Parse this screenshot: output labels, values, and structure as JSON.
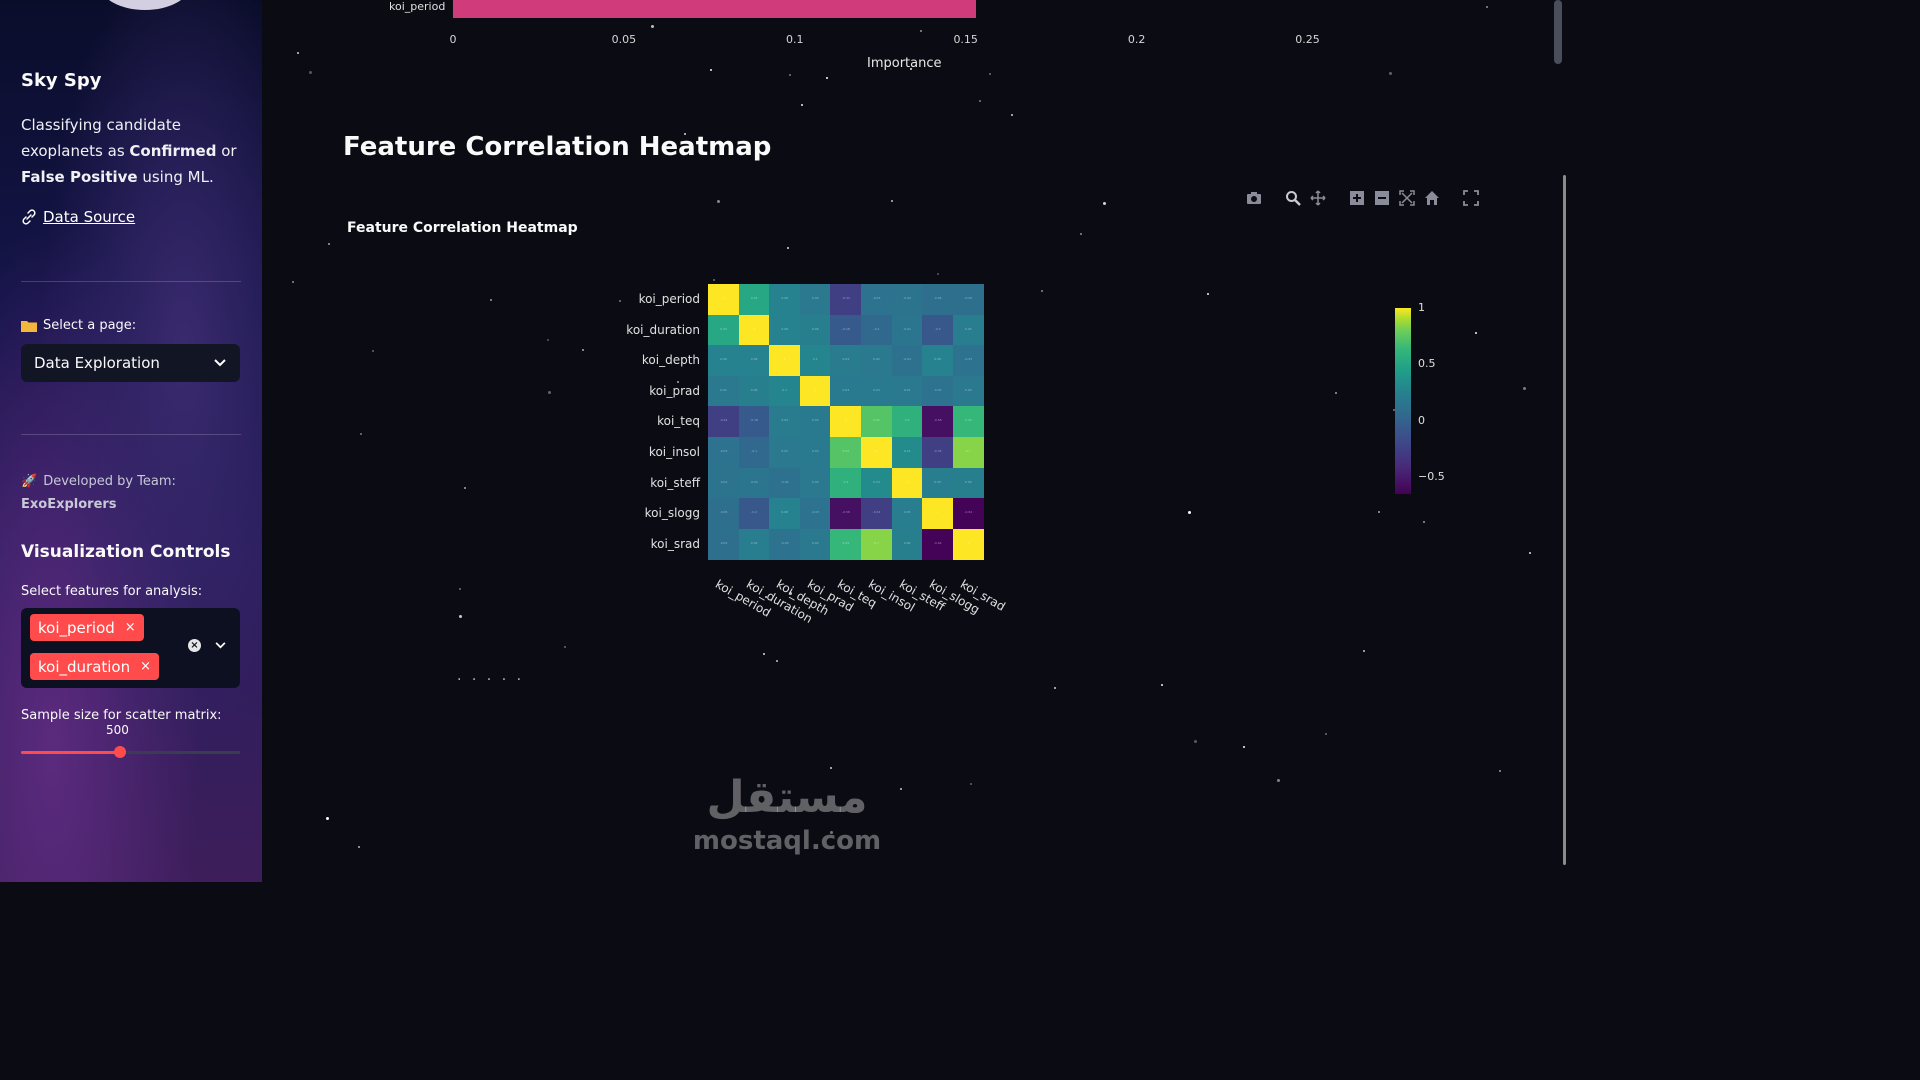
{
  "sidebar": {
    "app_title": "Sky Spy",
    "desc_pre": "Classifying candidate exoplanets as ",
    "desc_b1": "Confirmed",
    "desc_mid": " or ",
    "desc_b2": "False Positive",
    "desc_post": " using ML.",
    "data_source": "Data Source",
    "select_label": "Select a page:",
    "select_value": "Data Exploration",
    "team_label": "Developed by Team:",
    "team_name": "ExoExplorers",
    "viz_title": "Visualization Controls",
    "features_label": "Select features for analysis:",
    "selected_features": [
      "koi_period",
      "koi_duration"
    ],
    "sample_label": "Sample size for scatter matrix:",
    "sample_value": "500"
  },
  "importance_chart": {
    "bar_label": "koi_period",
    "xticks": [
      "0",
      "0.05",
      "0.1",
      "0.15",
      "0.2",
      "0.25"
    ],
    "xtitle": "Importance"
  },
  "main": {
    "section_title": "Feature Correlation Heatmap",
    "plot_title": "Feature Correlation Heatmap",
    "faded_text": "· · · · ·"
  },
  "chart_data": [
    {
      "type": "bar",
      "categories": [
        "koi_period"
      ],
      "values": [
        0.153
      ],
      "xlabel": "Importance",
      "xlim": [
        0,
        0.28
      ]
    },
    {
      "type": "heatmap",
      "title": "Feature Correlation Heatmap",
      "labels": [
        "koi_period",
        "koi_duration",
        "koi_depth",
        "koi_prad",
        "koi_teq",
        "koi_insol",
        "koi_steff",
        "koi_slogg",
        "koi_srad"
      ],
      "colorbar_ticks": [
        "1",
        "0.5",
        "0",
        "−0.5"
      ],
      "zlim": [
        -0.65,
        1
      ],
      "matrix": [
        [
          1,
          0.33,
          0.08,
          0.02,
          -0.34,
          -0.03,
          -0.02,
          -0.05,
          -0.05
        ],
        [
          0.33,
          1,
          0.08,
          0.06,
          -0.18,
          -0.1,
          -0.01,
          -0.2,
          0.05
        ],
        [
          0.08,
          0.08,
          1,
          0.1,
          0.04,
          0.02,
          -0.04,
          0.08,
          -0.03
        ],
        [
          0.02,
          0.06,
          0.1,
          1,
          0.03,
          0.03,
          0.02,
          -0.03,
          0.02
        ],
        [
          -0.34,
          -0.18,
          0.04,
          0.03,
          1,
          0.55,
          0.4,
          -0.58,
          0.45
        ],
        [
          -0.03,
          -0.1,
          0.02,
          0.03,
          0.55,
          1,
          0.14,
          -0.34,
          0.7
        ],
        [
          -0.02,
          -0.01,
          -0.04,
          0.02,
          0.4,
          0.14,
          1,
          0.05,
          0.06
        ],
        [
          -0.05,
          -0.2,
          0.08,
          -0.03,
          -0.58,
          -0.34,
          0.05,
          1,
          -0.64
        ],
        [
          -0.05,
          0.05,
          -0.03,
          0.02,
          0.45,
          0.7,
          0.06,
          -0.64,
          1
        ]
      ]
    }
  ],
  "watermark": {
    "arabic": "مستقل",
    "latin": "mostaql.com"
  },
  "icons": {
    "modebar": [
      "camera-icon",
      "zoom-icon",
      "pan-icon",
      "zoom-in-icon",
      "zoom-out-icon",
      "autoscale-icon",
      "reset-axes-icon",
      "fullscreen-icon"
    ]
  },
  "colors": {
    "accent": "#ff4b4b",
    "bar": "#d03b7c",
    "background": "#0b0c13"
  }
}
